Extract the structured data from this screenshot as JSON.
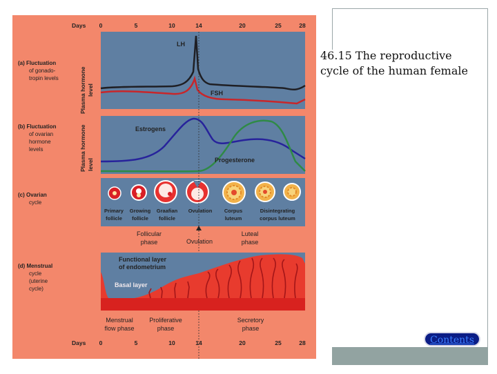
{
  "slide": {
    "caption_line1": "46.15 The reproductive",
    "caption_line2": "cycle of the human female",
    "contents_label": "Contents"
  },
  "figure": {
    "days_label": "Days",
    "day_ticks": [
      "0",
      "5",
      "10",
      "14",
      "20",
      "25",
      "28"
    ],
    "colors": {
      "background": "#f3876b",
      "panel": "#5f7fa2",
      "lh": "#1f1f24",
      "fsh": "#c8262a",
      "estrogen": "#27239b",
      "progesterone": "#2f8a46",
      "endometrium": "#e83b2e"
    },
    "section_a": {
      "label_title": "(a) Fluctuation",
      "label_line2": "of gonado-",
      "label_line3": "tropin levels",
      "axis_line1": "Plasma hormone",
      "axis_line2": "level",
      "lh_label": "LH",
      "fsh_label": "FSH"
    },
    "section_b": {
      "label_title": "(b) Fluctuation",
      "label_line2": "of ovarian",
      "label_line3": "hormone",
      "label_line4": "levels",
      "axis_line1": "Plasma hormone",
      "axis_line2": "level",
      "estrogen_label": "Estrogens",
      "progesterone_label": "Progesterone"
    },
    "section_c": {
      "label_title": "(c) Ovarian",
      "label_line2": "cycle",
      "stages": [
        {
          "line1": "Primary",
          "line2": "follicle"
        },
        {
          "line1": "Growing",
          "line2": "follicle"
        },
        {
          "line1": "Graafian",
          "line2": "follicle"
        },
        {
          "line1": "Ovulation",
          "line2": ""
        },
        {
          "line1": "Corpus",
          "line2": "luteum"
        },
        {
          "line1": "Disintegrating",
          "line2": "corpus luteum"
        }
      ],
      "follicular_line1": "Follicular",
      "follicular_line2": "phase",
      "ovulation_label": "Ovulation",
      "luteal_line1": "Luteal",
      "luteal_line2": "phase"
    },
    "section_d": {
      "label_title": "(d) Menstrual",
      "label_line2": "cycle",
      "label_line3": "(uterine",
      "label_line4": "cycle)",
      "functional_line1": "Functional layer",
      "functional_line2": "of endometrium",
      "basal_label": "Basal layer",
      "menstrual_line1": "Menstrual",
      "menstrual_line2": "flow phase",
      "proliferative_line1": "Proliferative",
      "proliferative_line2": "phase",
      "secretory_line1": "Secretory",
      "secretory_line2": "phase"
    }
  }
}
